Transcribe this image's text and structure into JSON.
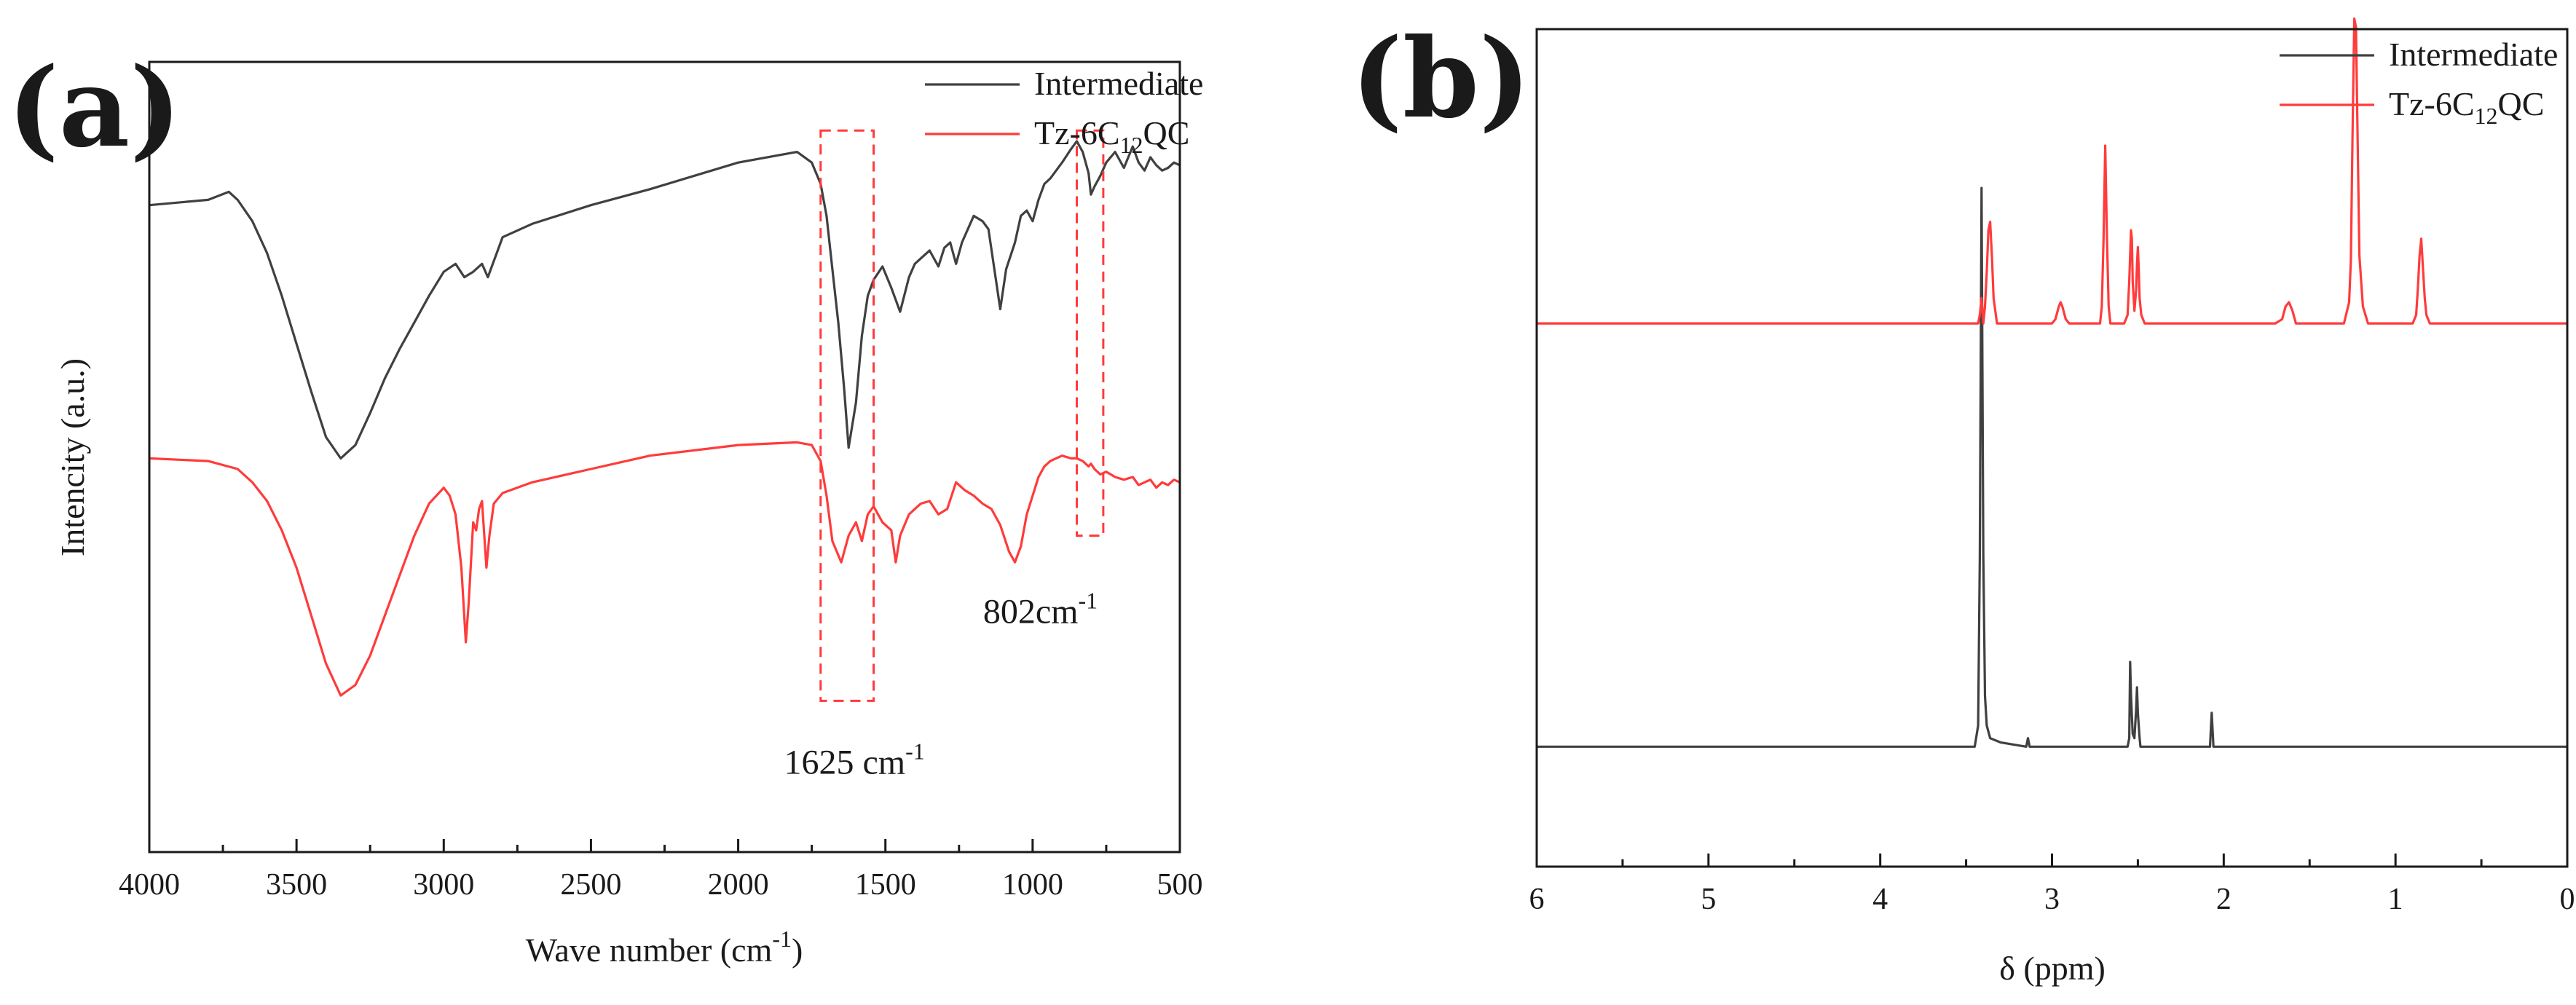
{
  "chart_data": [
    {
      "panel_label": "(a)",
      "type": "line",
      "title": "",
      "xlabel": "Wave number (cm",
      "xlabel_sup": "-1",
      "xlabel_end": ")",
      "ylabel": "Intencity (a.u.)",
      "xlim": [
        4000,
        500
      ],
      "ylim": [
        -1.35,
        1.0
      ],
      "xticks": [
        4000,
        3500,
        3000,
        2500,
        2000,
        1500,
        1000,
        500
      ],
      "yticks_shown": false,
      "legend_position": "top-right",
      "series": [
        {
          "name": "Intermediate",
          "legend_text": "Intermediate",
          "color": "#404040",
          "x": [
            4000,
            3800,
            3730,
            3700,
            3650,
            3600,
            3550,
            3500,
            3450,
            3400,
            3350,
            3300,
            3250,
            3200,
            3150,
            3100,
            3050,
            3000,
            2960,
            2930,
            2900,
            2870,
            2850,
            2800,
            2700,
            2500,
            2300,
            2000,
            1800,
            1750,
            1720,
            1700,
            1680,
            1660,
            1640,
            1625,
            1600,
            1580,
            1560,
            1540,
            1510,
            1480,
            1450,
            1420,
            1400,
            1380,
            1350,
            1320,
            1300,
            1280,
            1260,
            1240,
            1220,
            1200,
            1170,
            1150,
            1130,
            1110,
            1090,
            1060,
            1040,
            1020,
            1000,
            980,
            960,
            940,
            900,
            870,
            850,
            830,
            810,
            802,
            790,
            770,
            750,
            720,
            690,
            660,
            640,
            620,
            600,
            580,
            560,
            540,
            520,
            500
          ],
          "y": [
            0.64,
            0.66,
            0.69,
            0.66,
            0.58,
            0.46,
            0.3,
            0.12,
            -0.06,
            -0.23,
            -0.31,
            -0.26,
            -0.14,
            -0.01,
            0.1,
            0.2,
            0.3,
            0.39,
            0.42,
            0.37,
            0.39,
            0.42,
            0.37,
            0.52,
            0.57,
            0.64,
            0.7,
            0.8,
            0.84,
            0.8,
            0.72,
            0.6,
            0.4,
            0.2,
            -0.05,
            -0.27,
            -0.1,
            0.15,
            0.3,
            0.36,
            0.41,
            0.33,
            0.24,
            0.37,
            0.42,
            0.44,
            0.47,
            0.41,
            0.48,
            0.5,
            0.42,
            0.5,
            0.55,
            0.6,
            0.58,
            0.55,
            0.4,
            0.25,
            0.4,
            0.5,
            0.6,
            0.62,
            0.58,
            0.66,
            0.72,
            0.74,
            0.8,
            0.85,
            0.88,
            0.84,
            0.76,
            0.68,
            0.71,
            0.75,
            0.8,
            0.84,
            0.78,
            0.86,
            0.8,
            0.77,
            0.82,
            0.79,
            0.77,
            0.78,
            0.8,
            0.79
          ]
        },
        {
          "name": "Tz-6C12QC",
          "legend_text": "Tz-6C",
          "legend_sub": "12",
          "legend_end": "QC",
          "color": "#ff3b3b",
          "x": [
            4000,
            3800,
            3700,
            3650,
            3600,
            3550,
            3500,
            3450,
            3400,
            3350,
            3300,
            3250,
            3200,
            3150,
            3100,
            3050,
            3000,
            2980,
            2960,
            2940,
            2925,
            2915,
            2900,
            2890,
            2880,
            2870,
            2855,
            2845,
            2830,
            2800,
            2700,
            2500,
            2300,
            2000,
            1800,
            1750,
            1720,
            1700,
            1680,
            1650,
            1625,
            1600,
            1580,
            1560,
            1540,
            1510,
            1480,
            1465,
            1450,
            1420,
            1400,
            1380,
            1350,
            1320,
            1290,
            1260,
            1230,
            1200,
            1170,
            1140,
            1110,
            1080,
            1060,
            1040,
            1020,
            1000,
            980,
            960,
            940,
            900,
            870,
            850,
            830,
            810,
            802,
            790,
            770,
            750,
            720,
            690,
            660,
            640,
            620,
            600,
            580,
            560,
            540,
            520,
            500
          ],
          "y": [
            -0.31,
            -0.32,
            -0.35,
            -0.4,
            -0.47,
            -0.58,
            -0.72,
            -0.9,
            -1.08,
            -1.2,
            -1.16,
            -1.05,
            -0.9,
            -0.75,
            -0.6,
            -0.48,
            -0.42,
            -0.45,
            -0.52,
            -0.72,
            -1.0,
            -0.85,
            -0.55,
            -0.58,
            -0.5,
            -0.47,
            -0.72,
            -0.6,
            -0.48,
            -0.44,
            -0.4,
            -0.35,
            -0.3,
            -0.26,
            -0.25,
            -0.26,
            -0.32,
            -0.45,
            -0.62,
            -0.7,
            -0.6,
            -0.55,
            -0.62,
            -0.52,
            -0.49,
            -0.55,
            -0.58,
            -0.7,
            -0.6,
            -0.52,
            -0.5,
            -0.48,
            -0.47,
            -0.52,
            -0.5,
            -0.4,
            -0.43,
            -0.45,
            -0.48,
            -0.5,
            -0.56,
            -0.66,
            -0.7,
            -0.64,
            -0.52,
            -0.45,
            -0.38,
            -0.34,
            -0.32,
            -0.3,
            -0.31,
            -0.31,
            -0.32,
            -0.34,
            -0.33,
            -0.35,
            -0.37,
            -0.36,
            -0.38,
            -0.39,
            -0.38,
            -0.41,
            -0.4,
            -0.39,
            -0.42,
            -0.4,
            -0.41,
            -0.39,
            -0.4
          ]
        }
      ],
      "annotations": [
        {
          "label_main": "1625 cm",
          "label_sup": "-1",
          "x_range": [
            1720,
            1540
          ],
          "y_range": [
            0.92,
            -1.22
          ]
        },
        {
          "label_main": "802cm",
          "label_sup": "-1",
          "x_range": [
            850,
            760
          ],
          "y_range": [
            0.92,
            -0.6
          ]
        }
      ]
    },
    {
      "panel_label": "(b)",
      "type": "line",
      "title": "",
      "xlabel": "δ (ppm)",
      "ylabel": "",
      "xlim": [
        6,
        0
      ],
      "ylim": [
        -0.12,
        1.42
      ],
      "xticks": [
        6,
        5,
        4,
        3,
        2,
        1,
        0
      ],
      "yticks_shown": false,
      "legend_position": "top-right",
      "series": [
        {
          "name": "Intermediate",
          "legend_text": "Intermediate",
          "color": "#404040",
          "x": [
            6.0,
            3.45,
            3.43,
            3.42,
            3.41,
            3.4,
            3.39,
            3.38,
            3.36,
            3.3,
            3.15,
            3.14,
            3.13,
            2.56,
            2.55,
            2.545,
            2.54,
            2.53,
            2.52,
            2.51,
            2.505,
            2.5,
            2.49,
            2.485,
            2.08,
            2.075,
            2.07,
            2.065,
            2.06,
            0.0
          ],
          "y": [
            0.0,
            0.0,
            0.05,
            0.45,
            1.32,
            0.45,
            0.12,
            0.05,
            0.02,
            0.01,
            0.0,
            0.02,
            0.0,
            0.0,
            0.02,
            0.2,
            0.12,
            0.03,
            0.02,
            0.09,
            0.14,
            0.08,
            0.02,
            0.0,
            0.0,
            0.04,
            0.08,
            0.04,
            0.0,
            0.0
          ]
        },
        {
          "name": "Tz-6C12QC",
          "legend_text": "Tz-6C",
          "legend_sub": "12",
          "legend_end": "QC",
          "color": "#ff3b3b",
          "x": [
            6.0,
            3.45,
            3.43,
            3.42,
            3.41,
            3.4,
            3.39,
            3.38,
            3.37,
            3.36,
            3.35,
            3.34,
            3.32,
            3.2,
            3.0,
            2.98,
            2.96,
            2.95,
            2.94,
            2.92,
            2.9,
            2.72,
            2.71,
            2.7,
            2.69,
            2.68,
            2.67,
            2.66,
            2.58,
            2.56,
            2.55,
            2.54,
            2.535,
            2.53,
            2.52,
            2.51,
            2.505,
            2.5,
            2.495,
            2.49,
            2.48,
            2.46,
            1.7,
            1.66,
            1.64,
            1.62,
            1.6,
            1.58,
            1.3,
            1.27,
            1.26,
            1.25,
            1.24,
            1.23,
            1.22,
            1.21,
            1.19,
            1.16,
            0.9,
            0.88,
            0.87,
            0.86,
            0.85,
            0.84,
            0.83,
            0.82,
            0.8,
            0.0
          ],
          "y": [
            1.0,
            1.0,
            1.0,
            1.02,
            1.06,
            1.0,
            1.04,
            1.12,
            1.22,
            1.24,
            1.16,
            1.06,
            1.0,
            1.0,
            1.0,
            1.01,
            1.04,
            1.05,
            1.04,
            1.01,
            1.0,
            1.0,
            1.04,
            1.2,
            1.42,
            1.2,
            1.04,
            1.0,
            1.0,
            1.02,
            1.1,
            1.22,
            1.2,
            1.1,
            1.03,
            1.08,
            1.14,
            1.18,
            1.13,
            1.06,
            1.02,
            1.0,
            1.0,
            1.01,
            1.04,
            1.05,
            1.03,
            1.0,
            1.0,
            1.05,
            1.15,
            1.45,
            1.72,
            1.7,
            1.42,
            1.16,
            1.04,
            1.0,
            1.0,
            1.02,
            1.08,
            1.16,
            1.2,
            1.13,
            1.06,
            1.02,
            1.0,
            1.0
          ]
        }
      ],
      "annotations": []
    }
  ]
}
